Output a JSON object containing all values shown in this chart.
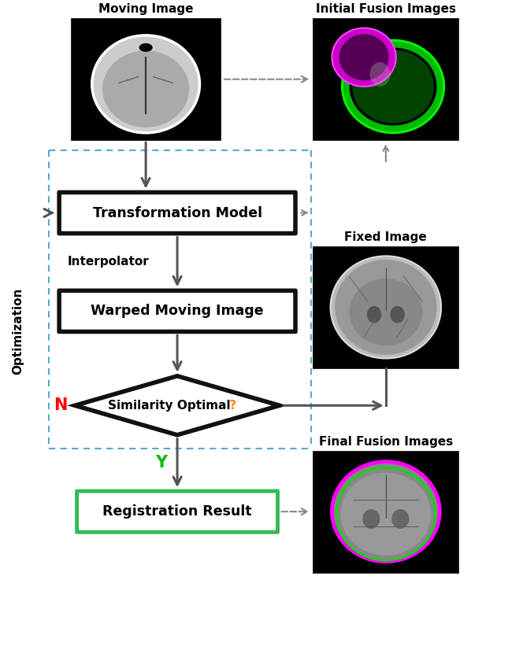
{
  "title_moving": "Moving Image",
  "title_initial": "Initial Fusion Images",
  "title_fixed": "Fixed Image",
  "title_final": "Final Fusion Images",
  "label_transform": "Transformation Model",
  "label_interpolator": "Interpolator",
  "label_warped": "Warped Moving Image",
  "label_similarity": "Similarity Optimal",
  "label_similarity_q": " ?",
  "label_result": "Registration Result",
  "label_optimization": "Optimization",
  "label_N": "N",
  "label_Y": "Y",
  "color_N": "#FF0000",
  "color_Y": "#00BB00",
  "color_q": "#FF8800",
  "color_box_border": "#111111",
  "color_result_border": "#33BB55",
  "color_dashed_blue": "#55AACC",
  "color_dashed_gray": "#888888",
  "color_arrow": "#555555",
  "bg_color": "#FFFFFF",
  "figw": 6.45,
  "figh": 8.4,
  "dpi": 100
}
